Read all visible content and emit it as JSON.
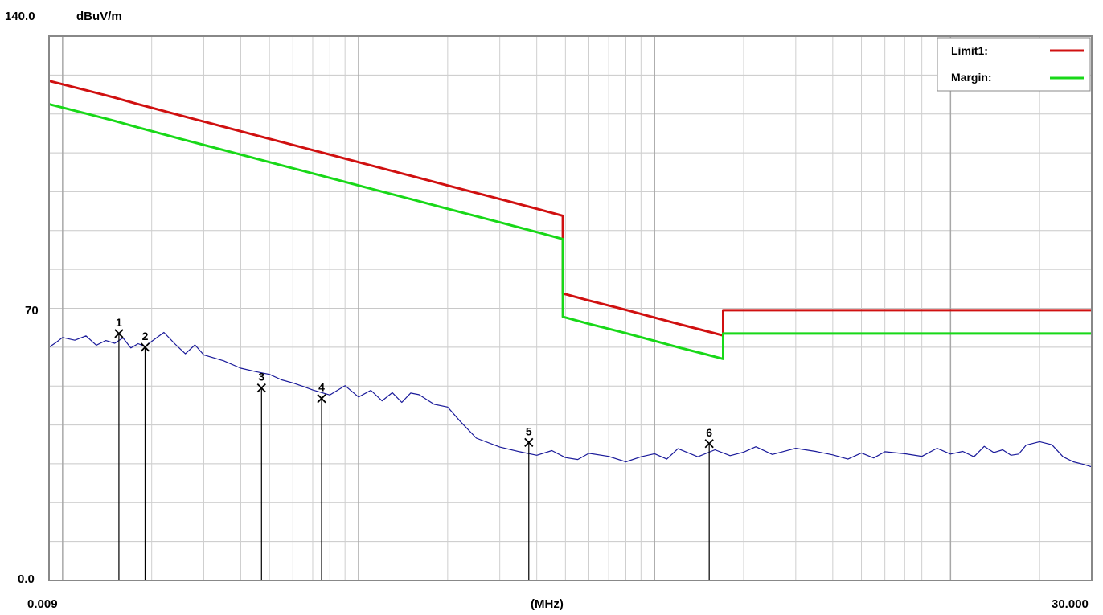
{
  "chart_data": {
    "type": "line",
    "title": "",
    "y_unit": "dBuV/m",
    "x_unit": "(MHz)",
    "x_scale": "log",
    "xlim": [
      0.009,
      30.0
    ],
    "ylim": [
      0.0,
      140.0
    ],
    "y_tick_labels": [
      "140.0",
      "70",
      "0.0"
    ],
    "x_tick_labels": [
      "0.009",
      "30.000"
    ],
    "grid": true,
    "legend_position": "top-right",
    "legend": [
      {
        "label": "Limit1:",
        "color": "#d01010"
      },
      {
        "label": "Margin:",
        "color": "#18d818"
      }
    ],
    "series": [
      {
        "name": "Limit1:",
        "color": "#d01010",
        "x": [
          0.009,
          0.012,
          0.015,
          0.018,
          0.025,
          0.035,
          0.05,
          0.07,
          0.1,
          0.15,
          0.2,
          0.3,
          0.4,
          0.49,
          0.49,
          0.6,
          0.8,
          1.0,
          1.2,
          1.5,
          1.705,
          1.705,
          2.0,
          5.0,
          10.0,
          20.0,
          30.0
        ],
        "y": [
          128.5,
          126.1,
          124.2,
          122.5,
          119.6,
          116.7,
          113.6,
          110.7,
          107.6,
          104.1,
          101.6,
          98.1,
          95.6,
          93.8,
          73.8,
          72.0,
          69.6,
          67.6,
          66.0,
          64.1,
          63.0,
          69.5,
          69.5,
          69.5,
          69.5,
          69.5,
          69.5
        ]
      },
      {
        "name": "Margin:",
        "color": "#18d818",
        "x": [
          0.009,
          0.012,
          0.015,
          0.018,
          0.025,
          0.035,
          0.05,
          0.07,
          0.1,
          0.15,
          0.2,
          0.3,
          0.4,
          0.49,
          0.49,
          0.6,
          0.8,
          1.0,
          1.2,
          1.5,
          1.705,
          1.705,
          2.0,
          5.0,
          10.0,
          20.0,
          30.0
        ],
        "y": [
          122.5,
          120.1,
          118.2,
          116.5,
          113.6,
          110.7,
          107.6,
          104.7,
          101.6,
          98.1,
          95.6,
          92.1,
          89.6,
          87.8,
          67.8,
          66.0,
          63.6,
          61.6,
          60.0,
          58.1,
          57.0,
          63.5,
          63.5,
          63.5,
          63.5,
          63.5,
          63.5
        ]
      },
      {
        "name": "",
        "color": "#1a1a9a",
        "x": [
          0.009,
          0.0095,
          0.01,
          0.011,
          0.012,
          0.013,
          0.014,
          0.015,
          0.016,
          0.017,
          0.018,
          0.019,
          0.02,
          0.022,
          0.024,
          0.026,
          0.028,
          0.03,
          0.035,
          0.04,
          0.045,
          0.05,
          0.055,
          0.06,
          0.065,
          0.07,
          0.08,
          0.09,
          0.1,
          0.11,
          0.12,
          0.13,
          0.14,
          0.15,
          0.16,
          0.18,
          0.2,
          0.22,
          0.25,
          0.3,
          0.35,
          0.4,
          0.45,
          0.5,
          0.55,
          0.6,
          0.7,
          0.8,
          0.9,
          1.0,
          1.1,
          1.2,
          1.4,
          1.6,
          1.8,
          2.0,
          2.2,
          2.5,
          3.0,
          3.5,
          4.0,
          4.5,
          5.0,
          5.5,
          6.0,
          7.0,
          8.0,
          9.0,
          10.0,
          11.0,
          12.0,
          13.0,
          14.0,
          15.0,
          16.0,
          17.0,
          18.0,
          20.0,
          22.0,
          24.0,
          26.0,
          28.0,
          30.0
        ],
        "y": [
          60.0,
          61.2,
          62.5,
          61.8,
          62.9,
          60.5,
          61.7,
          61.0,
          62.4,
          59.8,
          60.9,
          60.2,
          61.5,
          63.8,
          60.8,
          58.3,
          60.6,
          58.0,
          56.5,
          54.6,
          53.7,
          53.0,
          51.6,
          50.8,
          49.9,
          49.0,
          47.7,
          50.1,
          47.2,
          48.9,
          46.2,
          48.3,
          45.8,
          48.2,
          47.8,
          45.3,
          44.6,
          41.0,
          36.6,
          34.3,
          33.1,
          32.2,
          33.4,
          31.6,
          31.1,
          32.7,
          31.9,
          30.5,
          31.8,
          32.6,
          31.2,
          33.9,
          31.8,
          33.6,
          32.1,
          33.0,
          34.4,
          32.4,
          34.0,
          33.2,
          32.3,
          31.2,
          32.8,
          31.5,
          33.1,
          32.6,
          31.9,
          34.0,
          32.5,
          33.2,
          31.8,
          34.5,
          32.9,
          33.6,
          32.2,
          32.5,
          34.8,
          35.7,
          34.9,
          31.8,
          30.5,
          29.9,
          29.2
        ]
      }
    ],
    "markers": [
      {
        "label": "1",
        "x": 0.0155,
        "y": 63.5
      },
      {
        "label": "2",
        "x": 0.019,
        "y": 60.0
      },
      {
        "label": "3",
        "x": 0.047,
        "y": 49.5
      },
      {
        "label": "4",
        "x": 0.075,
        "y": 46.8
      },
      {
        "label": "5",
        "x": 0.376,
        "y": 35.5
      },
      {
        "label": "6",
        "x": 1.53,
        "y": 35.2
      }
    ]
  }
}
